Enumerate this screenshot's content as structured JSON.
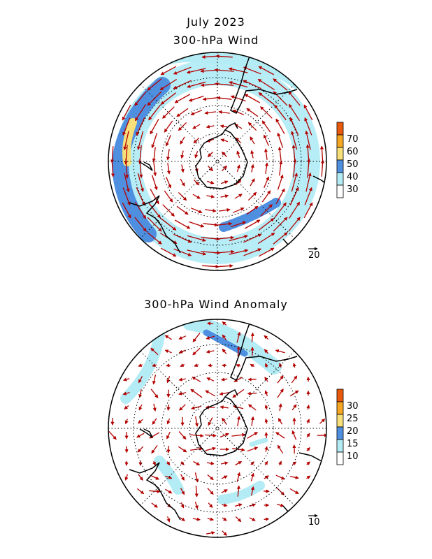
{
  "header": {
    "date": "July 2023",
    "panel1_title": "300-hPa Wind",
    "panel2_title": "300-hPa Wind Anomaly"
  },
  "panel1": {
    "colorbar": {
      "labels": [
        "30",
        "40",
        "50",
        "60",
        "70"
      ],
      "colors": [
        "#ffffff",
        "#b3ecf5",
        "#4f8fe0",
        "#f7e07a",
        "#f5a623",
        "#e8590c"
      ]
    },
    "reference_vector": "20"
  },
  "panel2": {
    "colorbar": {
      "labels": [
        "10",
        "15",
        "20",
        "25",
        "30"
      ],
      "colors": [
        "#ffffff",
        "#b3ecf5",
        "#4f8fe0",
        "#f7e07a",
        "#f5a623",
        "#e8590c"
      ]
    },
    "reference_vector": "10"
  },
  "colors": {
    "vector": "#b30000",
    "coast": "#000000"
  }
}
